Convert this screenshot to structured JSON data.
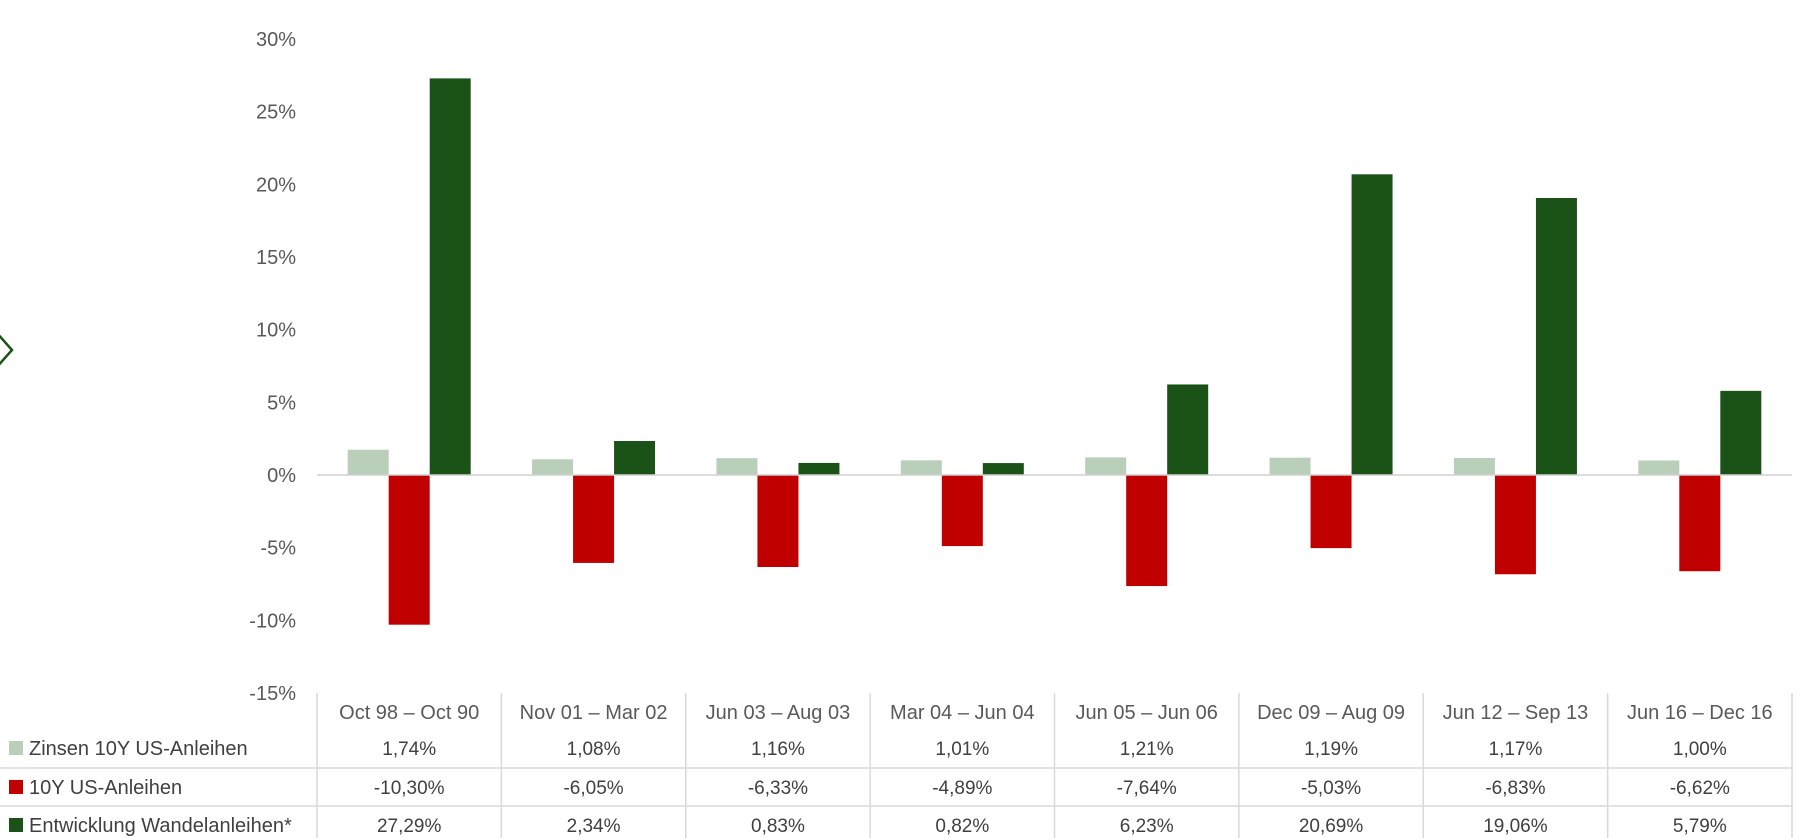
{
  "chart_data": {
    "type": "bar",
    "categories": [
      "Oct 98 – Oct 90",
      "Nov 01 – Mar 02",
      "Jun 03 – Aug 03",
      "Mar 04 – Jun 04",
      "Jun 05 – Jun 06",
      "Dec 09 – Aug 09",
      "Jun 12 – Sep 13",
      "Jun 16 – Dec 16"
    ],
    "series": [
      {
        "name": "Zinsen 10Y US-Anleihen",
        "color": "#b9cfb9",
        "values": [
          1.74,
          1.08,
          1.16,
          1.01,
          1.21,
          1.19,
          1.17,
          1.0
        ],
        "labels": [
          "1,74%",
          "1,08%",
          "1,16%",
          "1,01%",
          "1,21%",
          "1,19%",
          "1,17%",
          "1,00%"
        ]
      },
      {
        "name": "10Y US-Anleihen",
        "color": "#c00000",
        "values": [
          -10.3,
          -6.05,
          -6.33,
          -4.89,
          -7.64,
          -5.03,
          -6.83,
          -6.62
        ],
        "labels": [
          "-10,30%",
          "-6,05%",
          "-6,33%",
          "-4,89%",
          "-7,64%",
          "-5,03%",
          "-6,83%",
          "-6,62%"
        ]
      },
      {
        "name": "Entwicklung Wandelanleihen*",
        "color": "#1a5218",
        "values": [
          27.29,
          2.34,
          0.83,
          0.82,
          6.23,
          20.69,
          19.06,
          5.79
        ],
        "labels": [
          "27,29%",
          "2,34%",
          "0,83%",
          "0,82%",
          "6,23%",
          "20,69%",
          "19,06%",
          "5,79%"
        ]
      }
    ],
    "ylim": [
      -15,
      30
    ],
    "yticks": [
      30,
      25,
      20,
      15,
      10,
      5,
      0,
      -5,
      -10,
      -15
    ],
    "ytick_labels": [
      "30%",
      "25%",
      "20%",
      "15%",
      "10%",
      "5%",
      "0%",
      "-5%",
      "-10%",
      "-15%"
    ],
    "legend": "data-table",
    "grid": false
  },
  "ui": {
    "nav_icon": "chevron-right-icon",
    "nav_icon_color": "#1a5218"
  }
}
